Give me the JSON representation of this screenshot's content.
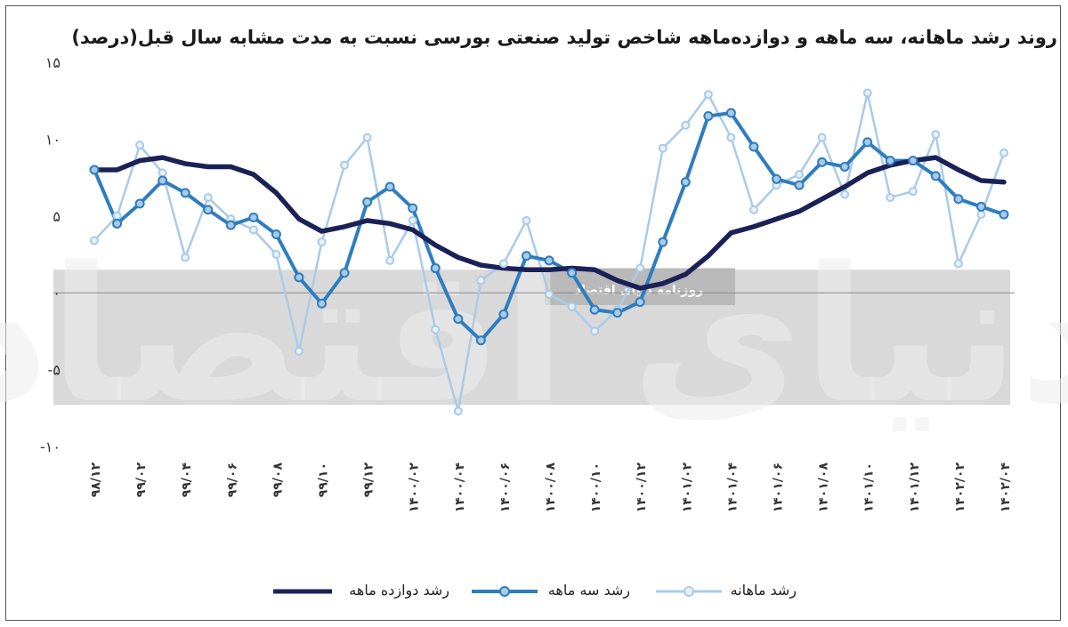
{
  "chart_data": {
    "type": "line",
    "title": "روند رشد ماهانه، سه ماهه و دوازده‌ماهه شاخص تولید صنعتی بورسی نسبت به مدت مشابه سال قبل(درصد)",
    "xlabel": "",
    "ylabel": "",
    "ylim": [
      -10,
      15
    ],
    "y_ticks": [
      15,
      10,
      5,
      0,
      -5,
      -10
    ],
    "y_tick_labels": [
      "۱۵",
      "۱۰",
      "۵",
      "۰",
      "-۵",
      "-۱۰"
    ],
    "x_tick_labels": [
      "۹۸/۱۲",
      "۹۹/۰۲",
      "۹۹/۰۴",
      "۹۹/۰۶",
      "۹۹/۰۸",
      "۹۹/۱۰",
      "۹۹/۱۲",
      "۱۴۰۰/۰۲",
      "۱۴۰۰/۰۴",
      "۱۴۰۰/۰۶",
      "۱۴۰۰/۰۸",
      "۱۴۰۰/۱۰",
      "۱۴۰۰/۱۲",
      "۱۴۰۱/۰۲",
      "۱۴۰۱/۰۴",
      "۱۴۰۱/۰۶",
      "۱۴۰۱/۰۸",
      "۱۴۰۱/۱۰",
      "۱۴۰۱/۱۲",
      "۱۴۰۲/۰۲",
      "۱۴۰۲/۰۴"
    ],
    "x": [
      "98/12",
      "99/01",
      "99/02",
      "99/03",
      "99/04",
      "99/05",
      "99/06",
      "99/07",
      "99/08",
      "99/09",
      "99/10",
      "99/11",
      "99/12",
      "1400/01",
      "1400/02",
      "1400/03",
      "1400/04",
      "1400/05",
      "1400/06",
      "1400/07",
      "1400/08",
      "1400/09",
      "1400/10",
      "1400/11",
      "1400/12",
      "1401/01",
      "1401/02",
      "1401/03",
      "1401/04",
      "1401/05",
      "1401/06",
      "1401/07",
      "1401/08",
      "1401/09",
      "1401/10",
      "1401/11",
      "1401/12",
      "1402/01",
      "1402/02",
      "1402/03",
      "1402/04"
    ],
    "series": [
      {
        "name": "رشد دوازده ماهه",
        "color": "#1b2157",
        "markers": false,
        "values": [
          8.0,
          8.0,
          8.6,
          8.8,
          8.4,
          8.2,
          8.2,
          7.7,
          6.5,
          4.8,
          4.0,
          4.3,
          4.7,
          4.5,
          4.1,
          3.1,
          2.3,
          1.8,
          1.6,
          1.5,
          1.5,
          1.6,
          1.5,
          0.8,
          0.3,
          0.6,
          1.2,
          2.4,
          3.9,
          4.3,
          4.8,
          5.3,
          6.1,
          6.9,
          7.8,
          8.3,
          8.6,
          8.8,
          8.0,
          7.3,
          7.2
        ]
      },
      {
        "name": "رشد سه ماهه",
        "color": "#2e7dbe",
        "markers": true,
        "values": [
          8.0,
          4.5,
          5.8,
          7.3,
          6.5,
          5.4,
          4.4,
          4.9,
          3.8,
          1.0,
          -0.7,
          1.3,
          5.9,
          6.9,
          5.5,
          1.6,
          -1.7,
          -3.1,
          -1.4,
          2.4,
          2.1,
          1.3,
          -1.1,
          -1.3,
          -0.6,
          3.3,
          7.2,
          11.5,
          11.7,
          9.5,
          7.4,
          7.0,
          8.5,
          8.2,
          9.8,
          8.6,
          8.6,
          7.6,
          6.1,
          5.6,
          5.1
        ]
      },
      {
        "name": "رشد ماهانه",
        "color": "#a9cbe8",
        "markers": true,
        "values": [
          3.4,
          5.0,
          9.6,
          7.8,
          2.3,
          6.2,
          4.8,
          4.1,
          2.5,
          -3.8,
          3.3,
          8.3,
          10.1,
          2.1,
          4.7,
          -2.4,
          -7.7,
          0.8,
          1.9,
          4.7,
          -0.1,
          -0.9,
          -2.5,
          -1.1,
          1.6,
          9.4,
          10.9,
          12.9,
          10.1,
          5.4,
          7.0,
          7.7,
          10.1,
          6.4,
          13.0,
          6.2,
          6.6,
          10.3,
          1.9,
          5.1,
          9.1
        ]
      }
    ],
    "legend_position": "bottom",
    "grid": false
  },
  "watermark": {
    "label": "روزنامه دنیای اقتصاد",
    "brand": "دنیای اقتصاد"
  }
}
